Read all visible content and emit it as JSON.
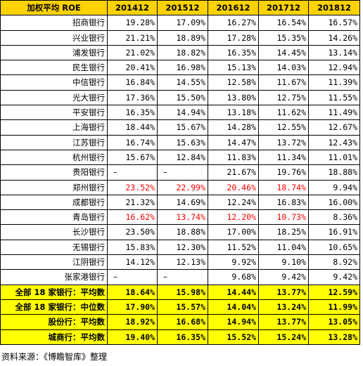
{
  "table": {
    "headers": [
      "加权平均 ROE",
      "201412",
      "201512",
      "201612",
      "201712",
      "201812"
    ],
    "rows": [
      {
        "name": "招商银行",
        "values": [
          "19.28%",
          "17.09%",
          "16.27%",
          "16.54%",
          "16.57%"
        ],
        "red": [
          false,
          false,
          false,
          false,
          false
        ]
      },
      {
        "name": "兴业银行",
        "values": [
          "21.21%",
          "18.89%",
          "17.28%",
          "15.35%",
          "14.26%"
        ],
        "red": [
          false,
          false,
          false,
          false,
          false
        ]
      },
      {
        "name": "浦发银行",
        "values": [
          "21.02%",
          "18.82%",
          "16.35%",
          "14.45%",
          "13.14%"
        ],
        "red": [
          false,
          false,
          false,
          false,
          false
        ]
      },
      {
        "name": "民生银行",
        "values": [
          "20.41%",
          "16.98%",
          "15.13%",
          "14.03%",
          "12.94%"
        ],
        "red": [
          false,
          false,
          false,
          false,
          false
        ]
      },
      {
        "name": "中信银行",
        "values": [
          "16.84%",
          "14.55%",
          "12.58%",
          "11.67%",
          "11.39%"
        ],
        "red": [
          false,
          false,
          false,
          false,
          false
        ]
      },
      {
        "name": "光大银行",
        "values": [
          "17.36%",
          "15.50%",
          "13.80%",
          "12.75%",
          "11.55%"
        ],
        "red": [
          false,
          false,
          false,
          false,
          false
        ]
      },
      {
        "name": "平安银行",
        "values": [
          "16.35%",
          "14.94%",
          "13.18%",
          "11.62%",
          "11.49%"
        ],
        "red": [
          false,
          false,
          false,
          false,
          false
        ]
      },
      {
        "name": "上海银行",
        "values": [
          "18.44%",
          "15.67%",
          "14.28%",
          "12.55%",
          "12.67%"
        ],
        "red": [
          false,
          false,
          false,
          false,
          false
        ]
      },
      {
        "name": "江苏银行",
        "values": [
          "16.74%",
          "15.63%",
          "14.47%",
          "13.72%",
          "12.43%"
        ],
        "red": [
          false,
          false,
          false,
          false,
          false
        ]
      },
      {
        "name": "杭州银行",
        "values": [
          "15.67%",
          "12.84%",
          "11.83%",
          "11.34%",
          "11.01%"
        ],
        "red": [
          false,
          false,
          false,
          false,
          false
        ]
      },
      {
        "name": "贵阳银行",
        "values": [
          "–",
          "–",
          "21.67%",
          "19.76%",
          "18.88%"
        ],
        "red": [
          false,
          false,
          false,
          false,
          false
        ]
      },
      {
        "name": "郑州银行",
        "values": [
          "23.52%",
          "22.99%",
          "20.46%",
          "18.74%",
          "9.94%"
        ],
        "red": [
          true,
          true,
          true,
          true,
          false
        ]
      },
      {
        "name": "成都银行",
        "values": [
          "21.32%",
          "14.69%",
          "12.24%",
          "16.83%",
          "16.00%"
        ],
        "red": [
          false,
          false,
          false,
          false,
          false
        ]
      },
      {
        "name": "青岛银行",
        "values": [
          "16.62%",
          "13.74%",
          "12.20%",
          "10.73%",
          "8.36%"
        ],
        "red": [
          true,
          true,
          true,
          true,
          false
        ]
      },
      {
        "name": "长沙银行",
        "values": [
          "23.50%",
          "18.88%",
          "17.00%",
          "18.25%",
          "16.91%"
        ],
        "red": [
          false,
          false,
          false,
          false,
          false
        ]
      },
      {
        "name": "无锡银行",
        "values": [
          "15.83%",
          "12.30%",
          "11.52%",
          "11.04%",
          "10.65%"
        ],
        "red": [
          false,
          false,
          false,
          false,
          false
        ]
      },
      {
        "name": "江阴银行",
        "values": [
          "14.12%",
          "12.13%",
          "9.92%",
          "9.10%",
          "8.92%"
        ],
        "red": [
          false,
          false,
          false,
          false,
          false
        ]
      },
      {
        "name": "张家港银行",
        "values": [
          "–",
          "–",
          "9.68%",
          "9.42%",
          "9.42%"
        ],
        "red": [
          false,
          false,
          false,
          false,
          false
        ]
      }
    ],
    "summary_rows": [
      {
        "name": "全部 18 家银行：平均数",
        "values": [
          "18.64%",
          "15.98%",
          "14.44%",
          "13.77%",
          "12.59%"
        ]
      },
      {
        "name": "全部 18 家银行：中位数",
        "values": [
          "17.90%",
          "15.57%",
          "14.04%",
          "13.24%",
          "11.99%"
        ]
      },
      {
        "name": "股份行：平均数",
        "values": [
          "18.92%",
          "16.68%",
          "14.94%",
          "13.77%",
          "13.05%"
        ]
      },
      {
        "name": "城商行：平均数",
        "values": [
          "19.40%",
          "16.35%",
          "15.52%",
          "15.24%",
          "13.28%"
        ]
      }
    ]
  },
  "source": "资料来源：《博瞻智库》整理",
  "colors": {
    "header_bg": "#FFD200",
    "summary_bg": "#FFFF00",
    "highlight_text": "#FF0000",
    "border": "#000000"
  }
}
